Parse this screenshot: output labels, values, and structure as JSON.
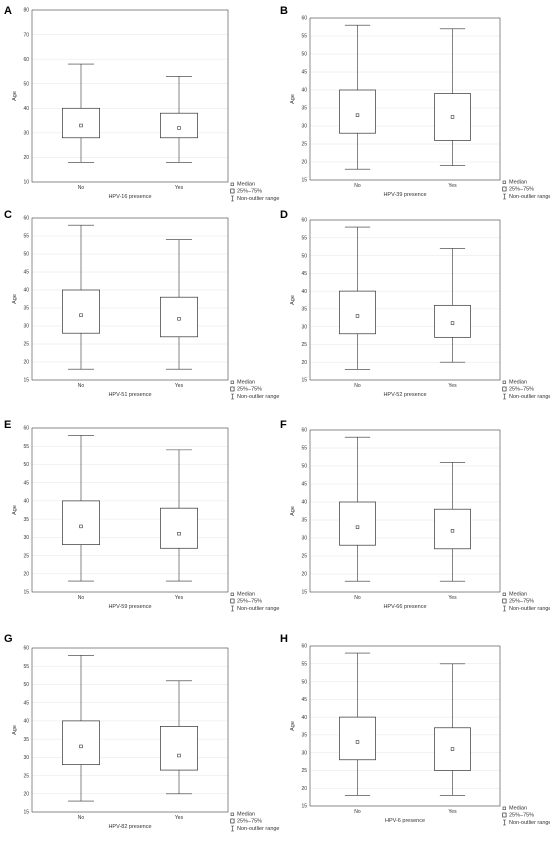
{
  "legend": {
    "median": "Median",
    "iqr": "25%–75%",
    "range": "Non-outlier range"
  },
  "chart_data": [
    {
      "letter": "A",
      "type": "box",
      "ylabel": "Age",
      "xlabel": "HPV-16 presence",
      "ylim": [
        10,
        80
      ],
      "yticks": [
        10,
        20,
        30,
        40,
        50,
        60,
        70,
        80
      ],
      "categories": [
        "No",
        "Yes"
      ],
      "boxes": [
        {
          "min": 18,
          "q1": 28,
          "median": 33,
          "q3": 40,
          "max": 58
        },
        {
          "min": 18,
          "q1": 28,
          "median": 32,
          "q3": 38,
          "max": 53
        }
      ]
    },
    {
      "letter": "B",
      "type": "box",
      "ylabel": "Age",
      "xlabel": "HPV-39 presence",
      "ylim": [
        15,
        60
      ],
      "yticks": [
        15,
        20,
        25,
        30,
        35,
        40,
        45,
        50,
        55,
        60
      ],
      "categories": [
        "No",
        "Yes"
      ],
      "boxes": [
        {
          "min": 18,
          "q1": 28,
          "median": 33,
          "q3": 40,
          "max": 58
        },
        {
          "min": 19,
          "q1": 26,
          "median": 32.5,
          "q3": 39,
          "max": 57
        }
      ]
    },
    {
      "letter": "C",
      "type": "box",
      "ylabel": "Age",
      "xlabel": "HPV-51 presence",
      "ylim": [
        15,
        60
      ],
      "yticks": [
        15,
        20,
        25,
        30,
        35,
        40,
        45,
        50,
        55,
        60
      ],
      "categories": [
        "No",
        "Yes"
      ],
      "boxes": [
        {
          "min": 18,
          "q1": 28,
          "median": 33,
          "q3": 40,
          "max": 58
        },
        {
          "min": 18,
          "q1": 27,
          "median": 32,
          "q3": 38,
          "max": 54
        }
      ]
    },
    {
      "letter": "D",
      "type": "box",
      "ylabel": "Age",
      "xlabel": "HPV-52 presence",
      "ylim": [
        15,
        60
      ],
      "yticks": [
        15,
        20,
        25,
        30,
        35,
        40,
        45,
        50,
        55,
        60
      ],
      "categories": [
        "No",
        "Yes"
      ],
      "boxes": [
        {
          "min": 18,
          "q1": 28,
          "median": 33,
          "q3": 40,
          "max": 58
        },
        {
          "min": 20,
          "q1": 27,
          "median": 31,
          "q3": 36,
          "max": 52
        }
      ]
    },
    {
      "letter": "E",
      "type": "box",
      "ylabel": "Age",
      "xlabel": "HPV-59 presence",
      "ylim": [
        15,
        60
      ],
      "yticks": [
        15,
        20,
        25,
        30,
        35,
        40,
        45,
        50,
        55,
        60
      ],
      "categories": [
        "No",
        "Yes"
      ],
      "boxes": [
        {
          "min": 18,
          "q1": 28,
          "median": 33,
          "q3": 40,
          "max": 58
        },
        {
          "min": 18,
          "q1": 27,
          "median": 31,
          "q3": 38,
          "max": 54
        }
      ]
    },
    {
      "letter": "F",
      "type": "box",
      "ylabel": "Age",
      "xlabel": "HPV-66 presence",
      "ylim": [
        15,
        60
      ],
      "yticks": [
        15,
        20,
        25,
        30,
        35,
        40,
        45,
        50,
        55,
        60
      ],
      "categories": [
        "No",
        "Yes"
      ],
      "boxes": [
        {
          "min": 18,
          "q1": 28,
          "median": 33,
          "q3": 40,
          "max": 58
        },
        {
          "min": 18,
          "q1": 27,
          "median": 32,
          "q3": 38,
          "max": 51
        }
      ]
    },
    {
      "letter": "G",
      "type": "box",
      "ylabel": "Age",
      "xlabel": "HPV-82 presence",
      "ylim": [
        15,
        60
      ],
      "yticks": [
        15,
        20,
        25,
        30,
        35,
        40,
        45,
        50,
        55,
        60
      ],
      "categories": [
        "No",
        "Yes"
      ],
      "boxes": [
        {
          "min": 18,
          "q1": 28,
          "median": 33,
          "q3": 40,
          "max": 58
        },
        {
          "min": 20,
          "q1": 26.5,
          "median": 30.5,
          "q3": 38.5,
          "max": 51
        }
      ]
    },
    {
      "letter": "H",
      "type": "box",
      "ylabel": "Age",
      "xlabel": "HPV-6 presence",
      "ylim": [
        15,
        60
      ],
      "yticks": [
        15,
        20,
        25,
        30,
        35,
        40,
        45,
        50,
        55,
        60
      ],
      "categories": [
        "No",
        "Yes"
      ],
      "boxes": [
        {
          "min": 18,
          "q1": 28,
          "median": 33,
          "q3": 40,
          "max": 58
        },
        {
          "min": 18,
          "q1": 25,
          "median": 31,
          "q3": 37,
          "max": 55
        }
      ]
    }
  ]
}
